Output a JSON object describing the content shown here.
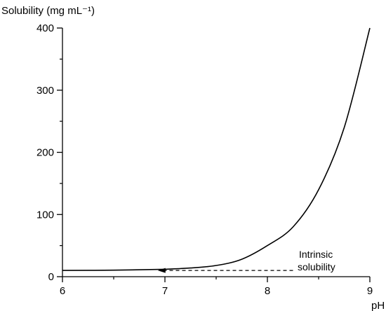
{
  "chart_data": {
    "type": "line",
    "ylabel": "Solubility (mg mL⁻¹)",
    "xlabel": "pH",
    "xlim": [
      6,
      9
    ],
    "ylim": [
      0,
      400
    ],
    "xticks": [
      6,
      7,
      8,
      9
    ],
    "yticks": [
      0,
      100,
      200,
      300,
      400
    ],
    "grid": false,
    "series": [
      {
        "x": [
          6.0,
          6.5,
          7.0,
          7.25,
          7.5,
          7.75,
          8.0,
          8.25,
          8.5,
          8.75,
          9.0
        ],
        "values": [
          10.0,
          10.5,
          12.0,
          14.0,
          18.0,
          28.0,
          50.0,
          80.0,
          140.0,
          240.0,
          400.0
        ]
      }
    ],
    "annotation": {
      "lines": [
        "Intrinsic",
        "solubility"
      ],
      "arrow_from": [
        8.25,
        10.0
      ],
      "arrow_to": [
        6.93,
        10.0
      ]
    }
  }
}
